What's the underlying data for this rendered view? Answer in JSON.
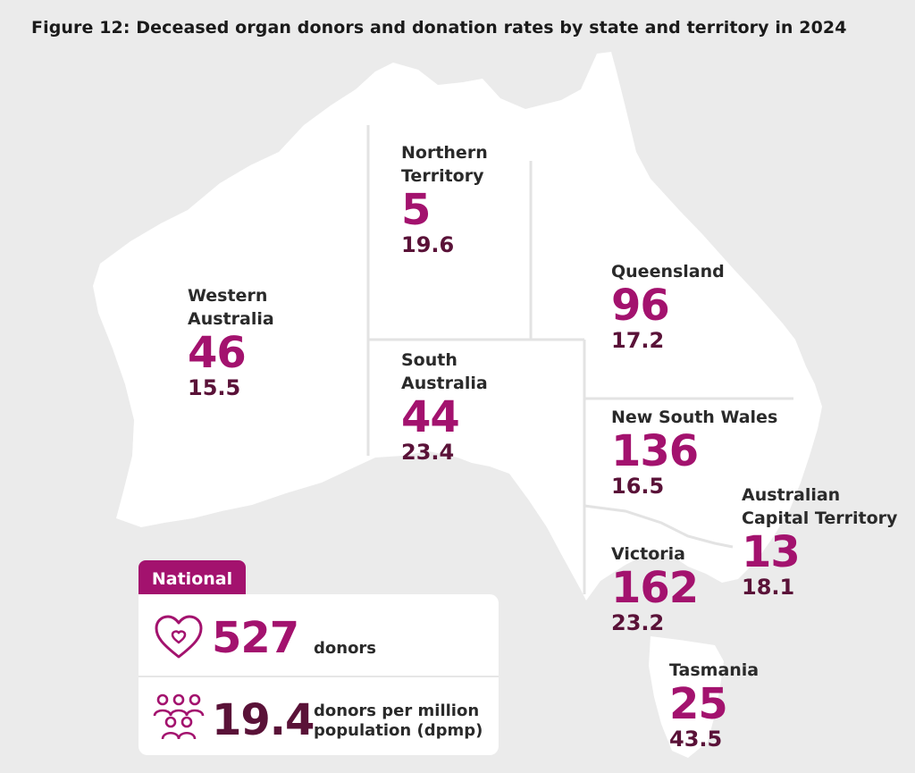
{
  "title": "Figure 12: Deceased organ donors and donation rates by state and territory in 2024",
  "regions": [
    {
      "id": "nt",
      "name_lines": [
        "Northern",
        "Territory"
      ],
      "donors": "5",
      "rate": "19.6"
    },
    {
      "id": "wa",
      "name_lines": [
        "Western",
        "Australia"
      ],
      "donors": "46",
      "rate": "15.5"
    },
    {
      "id": "qld",
      "name_lines": [
        "Queensland"
      ],
      "donors": "96",
      "rate": "17.2"
    },
    {
      "id": "sa",
      "name_lines": [
        "South",
        "Australia"
      ],
      "donors": "44",
      "rate": "23.4"
    },
    {
      "id": "nsw",
      "name_lines": [
        "New South Wales"
      ],
      "donors": "136",
      "rate": "16.5"
    },
    {
      "id": "act",
      "name_lines": [
        "Australian",
        "Capital Territory"
      ],
      "donors": "13",
      "rate": "18.1"
    },
    {
      "id": "vic",
      "name_lines": [
        "Victoria"
      ],
      "donors": "162",
      "rate": "23.2"
    },
    {
      "id": "tas",
      "name_lines": [
        "Tasmania"
      ],
      "donors": "25",
      "rate": "43.5"
    }
  ],
  "national": {
    "tab_label": "National",
    "donors_value": "527",
    "donors_label": "donors",
    "rate_value": "19.4",
    "rate_label_lines": [
      "donors per million",
      "population (dpmp)"
    ],
    "icons": [
      "heart-icon",
      "people-group-icon"
    ]
  },
  "colors": {
    "accent": "#a3126e",
    "rate": "#5a1238",
    "land": "#ffffff",
    "background": "#ebebeb"
  }
}
